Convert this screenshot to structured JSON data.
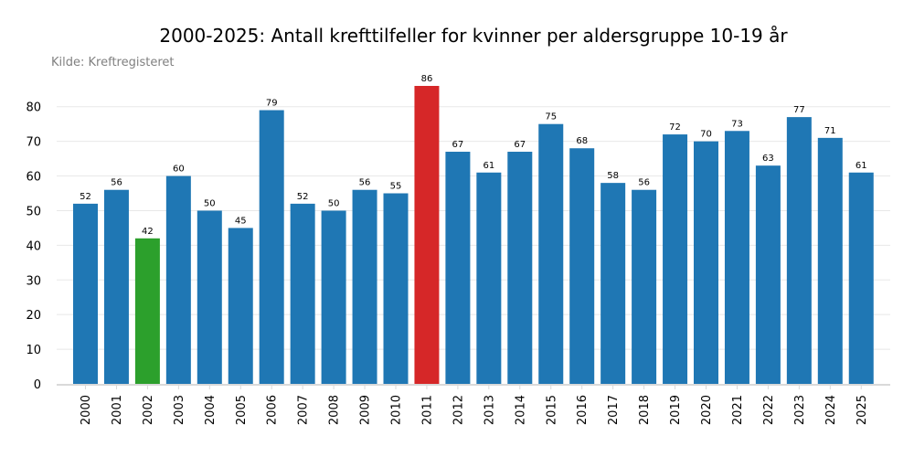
{
  "chart_data": {
    "type": "bar",
    "title": "2000-2025: Antall krefttilfeller for kvinner per aldersgruppe 10-19 år",
    "subtitle": "Kilde: Kreftregisteret",
    "xlabel": "",
    "ylabel": "",
    "ylim": [
      0,
      86
    ],
    "yticks": [
      0,
      10,
      20,
      30,
      40,
      50,
      60,
      70,
      80
    ],
    "grid": true,
    "categories": [
      "2000",
      "2001",
      "2002",
      "2003",
      "2004",
      "2005",
      "2006",
      "2007",
      "2008",
      "2009",
      "2010",
      "2011",
      "2012",
      "2013",
      "2014",
      "2015",
      "2016",
      "2017",
      "2018",
      "2019",
      "2020",
      "2021",
      "2022",
      "2023",
      "2024",
      "2025"
    ],
    "values": [
      52,
      56,
      42,
      60,
      50,
      45,
      79,
      52,
      50,
      56,
      55,
      86,
      67,
      61,
      67,
      75,
      68,
      58,
      56,
      72,
      70,
      73,
      63,
      77,
      71,
      61
    ],
    "colors": {
      "default": "#1f77b4",
      "min": "#2ca02c",
      "max": "#d62728"
    },
    "highlight": {
      "min_category": "2002",
      "max_category": "2011"
    }
  }
}
